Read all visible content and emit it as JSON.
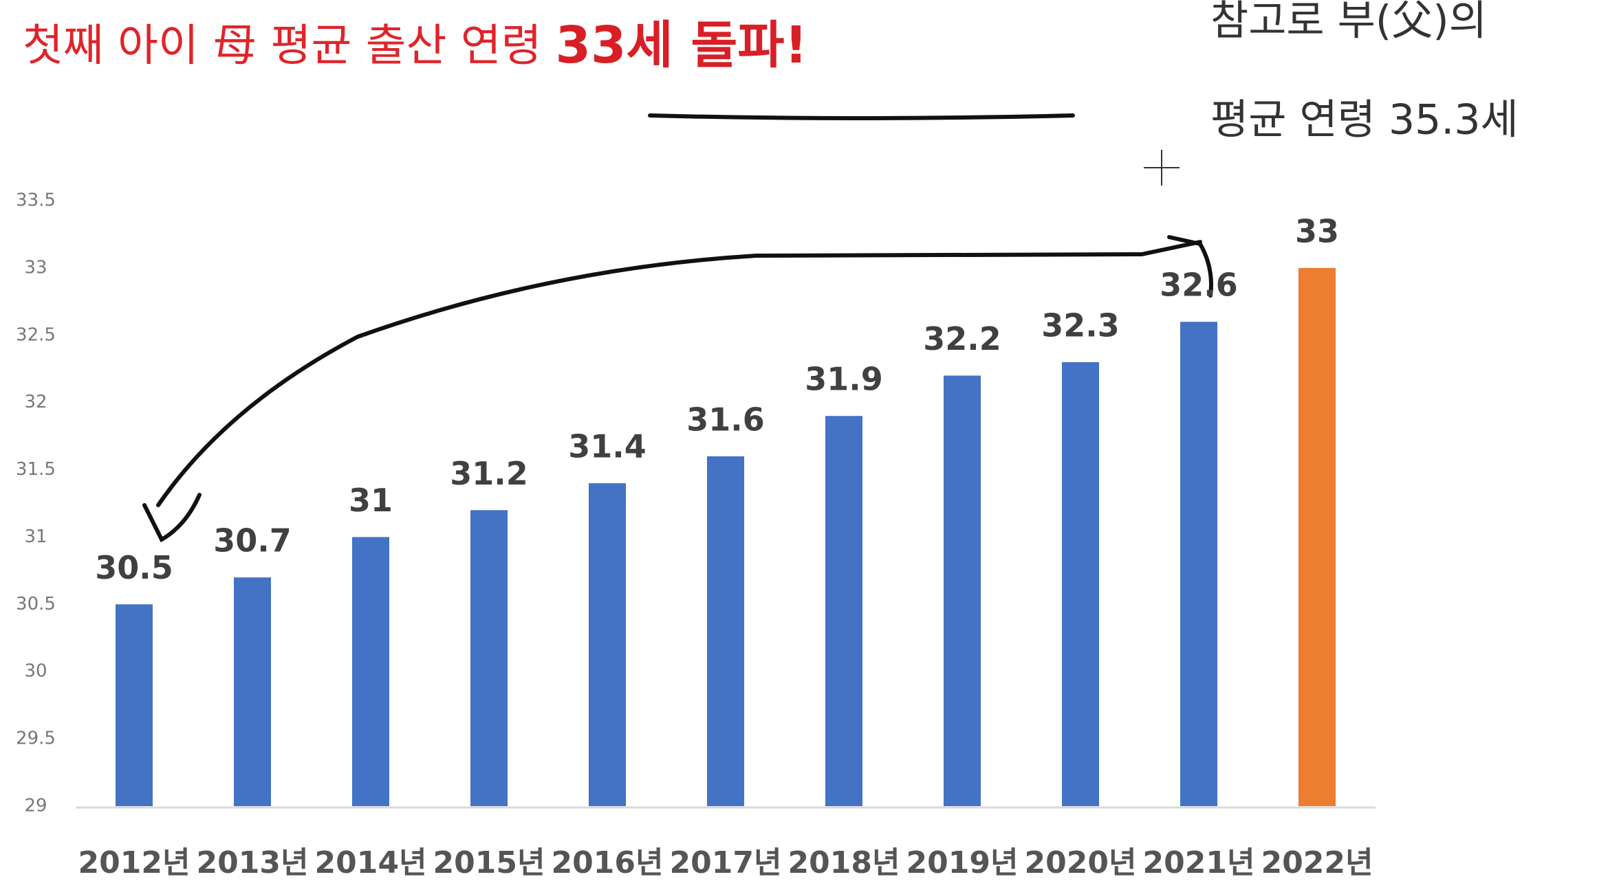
{
  "chart_data": {
    "type": "bar",
    "title": "첫째 아이 母 평균 출산 연령",
    "title_emphasis": "33세 돌파!",
    "annotations": [
      "참고로 부(父)의",
      "평균 연령 35.3세"
    ],
    "categories": [
      "2012년",
      "2013년",
      "2014년",
      "2015년",
      "2016년",
      "2017년",
      "2018년",
      "2019년",
      "2020년",
      "2021년",
      "2022년"
    ],
    "values": [
      30.5,
      30.7,
      31,
      31.2,
      31.4,
      31.6,
      31.9,
      32.2,
      32.3,
      32.6,
      33
    ],
    "colors": [
      "#4472c4",
      "#4472c4",
      "#4472c4",
      "#4472c4",
      "#4472c4",
      "#4472c4",
      "#4472c4",
      "#4472c4",
      "#4472c4",
      "#4472c4",
      "#ed7d31"
    ],
    "ylim": [
      29,
      33.5
    ],
    "yticks": [
      29,
      29.5,
      30,
      30.5,
      31,
      31.5,
      32,
      32.5,
      33,
      33.5
    ],
    "grid": false
  }
}
